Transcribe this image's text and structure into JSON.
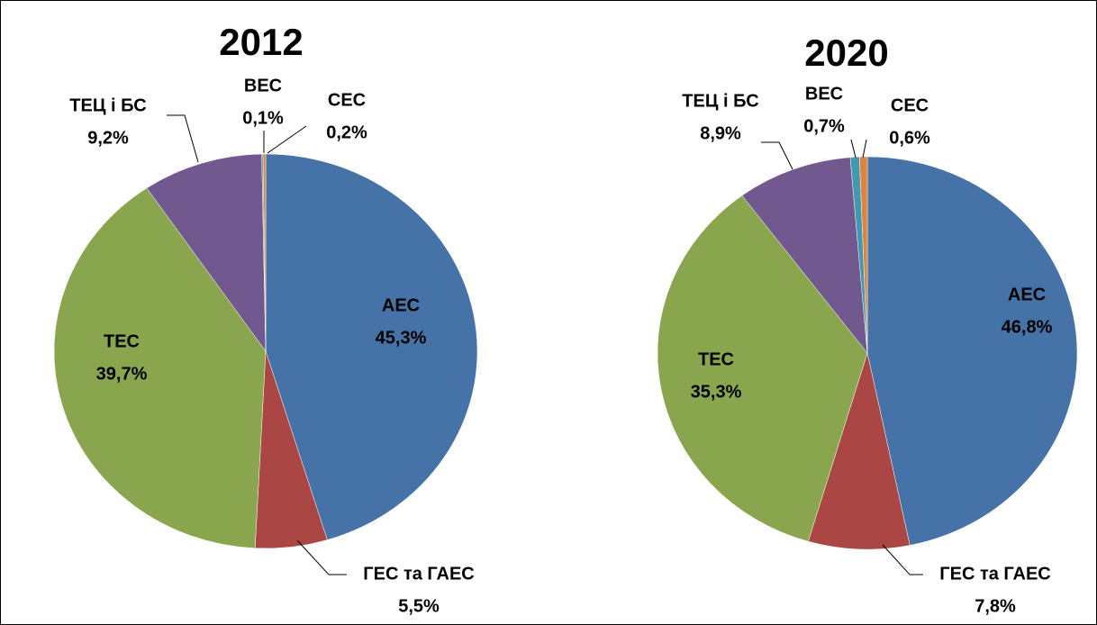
{
  "chart_data": [
    {
      "type": "pie",
      "title": "2012",
      "categories": [
        "АЕС",
        "ГЕС та ГАЕС",
        "ТЕС",
        "ТЕЦ і БС",
        "ВЕС",
        "СЕС"
      ],
      "values": [
        45.3,
        5.5,
        39.7,
        9.2,
        0.1,
        0.2
      ],
      "value_labels": [
        "45,3%",
        "5,5%",
        "39,7%",
        "9,2%",
        "0,1%",
        "0,2%"
      ],
      "colors": [
        "#4572a7",
        "#aa4643",
        "#89a54e",
        "#71588f",
        "#4198af",
        "#db843d"
      ]
    },
    {
      "type": "pie",
      "title": "2020",
      "categories": [
        "АЕС",
        "ГЕС та ГАЕС",
        "ТЕС",
        "ТЕЦ і БС",
        "ВЕС",
        "СЕС"
      ],
      "values": [
        46.8,
        7.8,
        35.3,
        8.9,
        0.7,
        0.6
      ],
      "value_labels": [
        "46,8%",
        "7,8%",
        "35,3%",
        "8,9%",
        "0,7%",
        "0,6%"
      ],
      "colors": [
        "#4572a7",
        "#aa4643",
        "#89a54e",
        "#71588f",
        "#4198af",
        "#db843d"
      ]
    }
  ]
}
